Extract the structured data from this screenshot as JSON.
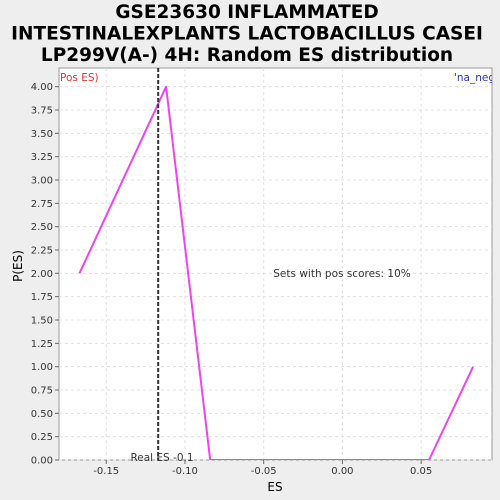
{
  "chart_data": {
    "type": "line",
    "title_lines": [
      "GSE23630 INFLAMMATED",
      "INTESTINALEXPLANTS LACTOBACILLUS CASEI",
      "LP299V(A-) 4H: Random ES distribution"
    ],
    "xlabel": "ES",
    "ylabel": "P(ES)",
    "xlim": [
      -0.18,
      0.095
    ],
    "ylim": [
      0,
      4.2
    ],
    "x_ticks": [
      -0.15,
      -0.1,
      -0.05,
      0.0,
      0.05
    ],
    "x_tick_labels": [
      "-0.15",
      "-0.10",
      "-0.05",
      "0.00",
      "0.05"
    ],
    "y_ticks": [
      0,
      0.25,
      0.5,
      0.75,
      1.0,
      1.25,
      1.5,
      1.75,
      2.0,
      2.25,
      2.5,
      2.75,
      3.0,
      3.25,
      3.5,
      3.75,
      4.0
    ],
    "y_tick_labels": [
      "0.00",
      "0.25",
      "0.50",
      "0.75",
      "1.00",
      "1.25",
      "1.50",
      "1.75",
      "2.00",
      "2.25",
      "2.50",
      "2.75",
      "3.00",
      "3.25",
      "3.50",
      "3.75",
      "4.00"
    ],
    "grid": true,
    "series": [
      {
        "color": "#ee44ee",
        "x": [
          -0.167,
          -0.112,
          -0.084,
          -0.05,
          0.0,
          0.055,
          0.083
        ],
        "y": [
          2.0,
          4.0,
          0.0,
          0.0,
          0.0,
          0.0,
          1.0
        ]
      }
    ],
    "real_es": {
      "x": -0.117,
      "label": "Real ES -0.1",
      "color": "#333333"
    },
    "annotations": {
      "left": {
        "text": "Pos ES)",
        "color": "#dd3333"
      },
      "right": {
        "text": "'na_neg",
        "color": "#3333bb"
      },
      "center": {
        "text": "Sets with pos scores: 10%",
        "color": "#333333"
      }
    },
    "colors": {
      "background": "#eeeeee",
      "plot_background": "#ffffff",
      "grid": "#e0e0e0"
    }
  }
}
